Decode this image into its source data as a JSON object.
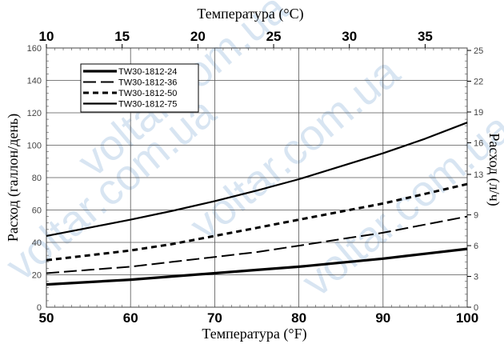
{
  "chart_data": {
    "type": "line",
    "title": "Температура (°C)",
    "xlabel": "Температура (°F)",
    "ylabel": "Расход (галлон/день)",
    "ylabel_right": "Расход (л/ч)",
    "x": [
      50,
      55,
      60,
      65,
      70,
      75,
      80,
      85,
      90,
      95,
      100
    ],
    "xlim": [
      50,
      100
    ],
    "ylim": [
      0,
      160
    ],
    "x_ticks": [
      "50",
      "60",
      "70",
      "80",
      "90",
      "100"
    ],
    "y_ticks": [
      "0",
      "20",
      "40",
      "60",
      "80",
      "100",
      "120",
      "140",
      "160"
    ],
    "top_ticks": [
      {
        "label": "10",
        "f": 50
      },
      {
        "label": "15",
        "f": 59
      },
      {
        "label": "20",
        "f": 68
      },
      {
        "label": "25",
        "f": 77
      },
      {
        "label": "30",
        "f": 86
      },
      {
        "label": "35",
        "f": 95
      }
    ],
    "right_ticks": [
      {
        "label": "0",
        "gpd": 0
      },
      {
        "label": "3",
        "gpd": 19
      },
      {
        "label": "6",
        "gpd": 38
      },
      {
        "label": "9",
        "gpd": 57
      },
      {
        "label": "13",
        "gpd": 82
      },
      {
        "label": "16",
        "gpd": 101.5
      },
      {
        "label": "19",
        "gpd": 120.5
      },
      {
        "label": "22",
        "gpd": 139.5
      },
      {
        "label": "25",
        "gpd": 158.5
      }
    ],
    "grid": true,
    "legend_position": "top-left",
    "series": [
      {
        "name": "TW30-1812-24",
        "style": "thick",
        "values": [
          14,
          15.5,
          17,
          19,
          21,
          23,
          25,
          27.5,
          30,
          33,
          36
        ]
      },
      {
        "name": "TW30-1812-36",
        "style": "longdash",
        "values": [
          21,
          23,
          25,
          28,
          31,
          34,
          38,
          42,
          46,
          51,
          56
        ]
      },
      {
        "name": "TW30-1812-50",
        "style": "dash",
        "values": [
          29,
          32,
          35,
          39,
          44,
          49,
          54,
          59,
          64,
          70,
          76
        ]
      },
      {
        "name": "TW30-1812-75",
        "style": "solid",
        "values": [
          44,
          49,
          54,
          59.5,
          65.5,
          72,
          79,
          87,
          95,
          104,
          114
        ]
      }
    ]
  },
  "watermark": {
    "text": "voltar.com.ua",
    "color": "#b8d0e8"
  }
}
